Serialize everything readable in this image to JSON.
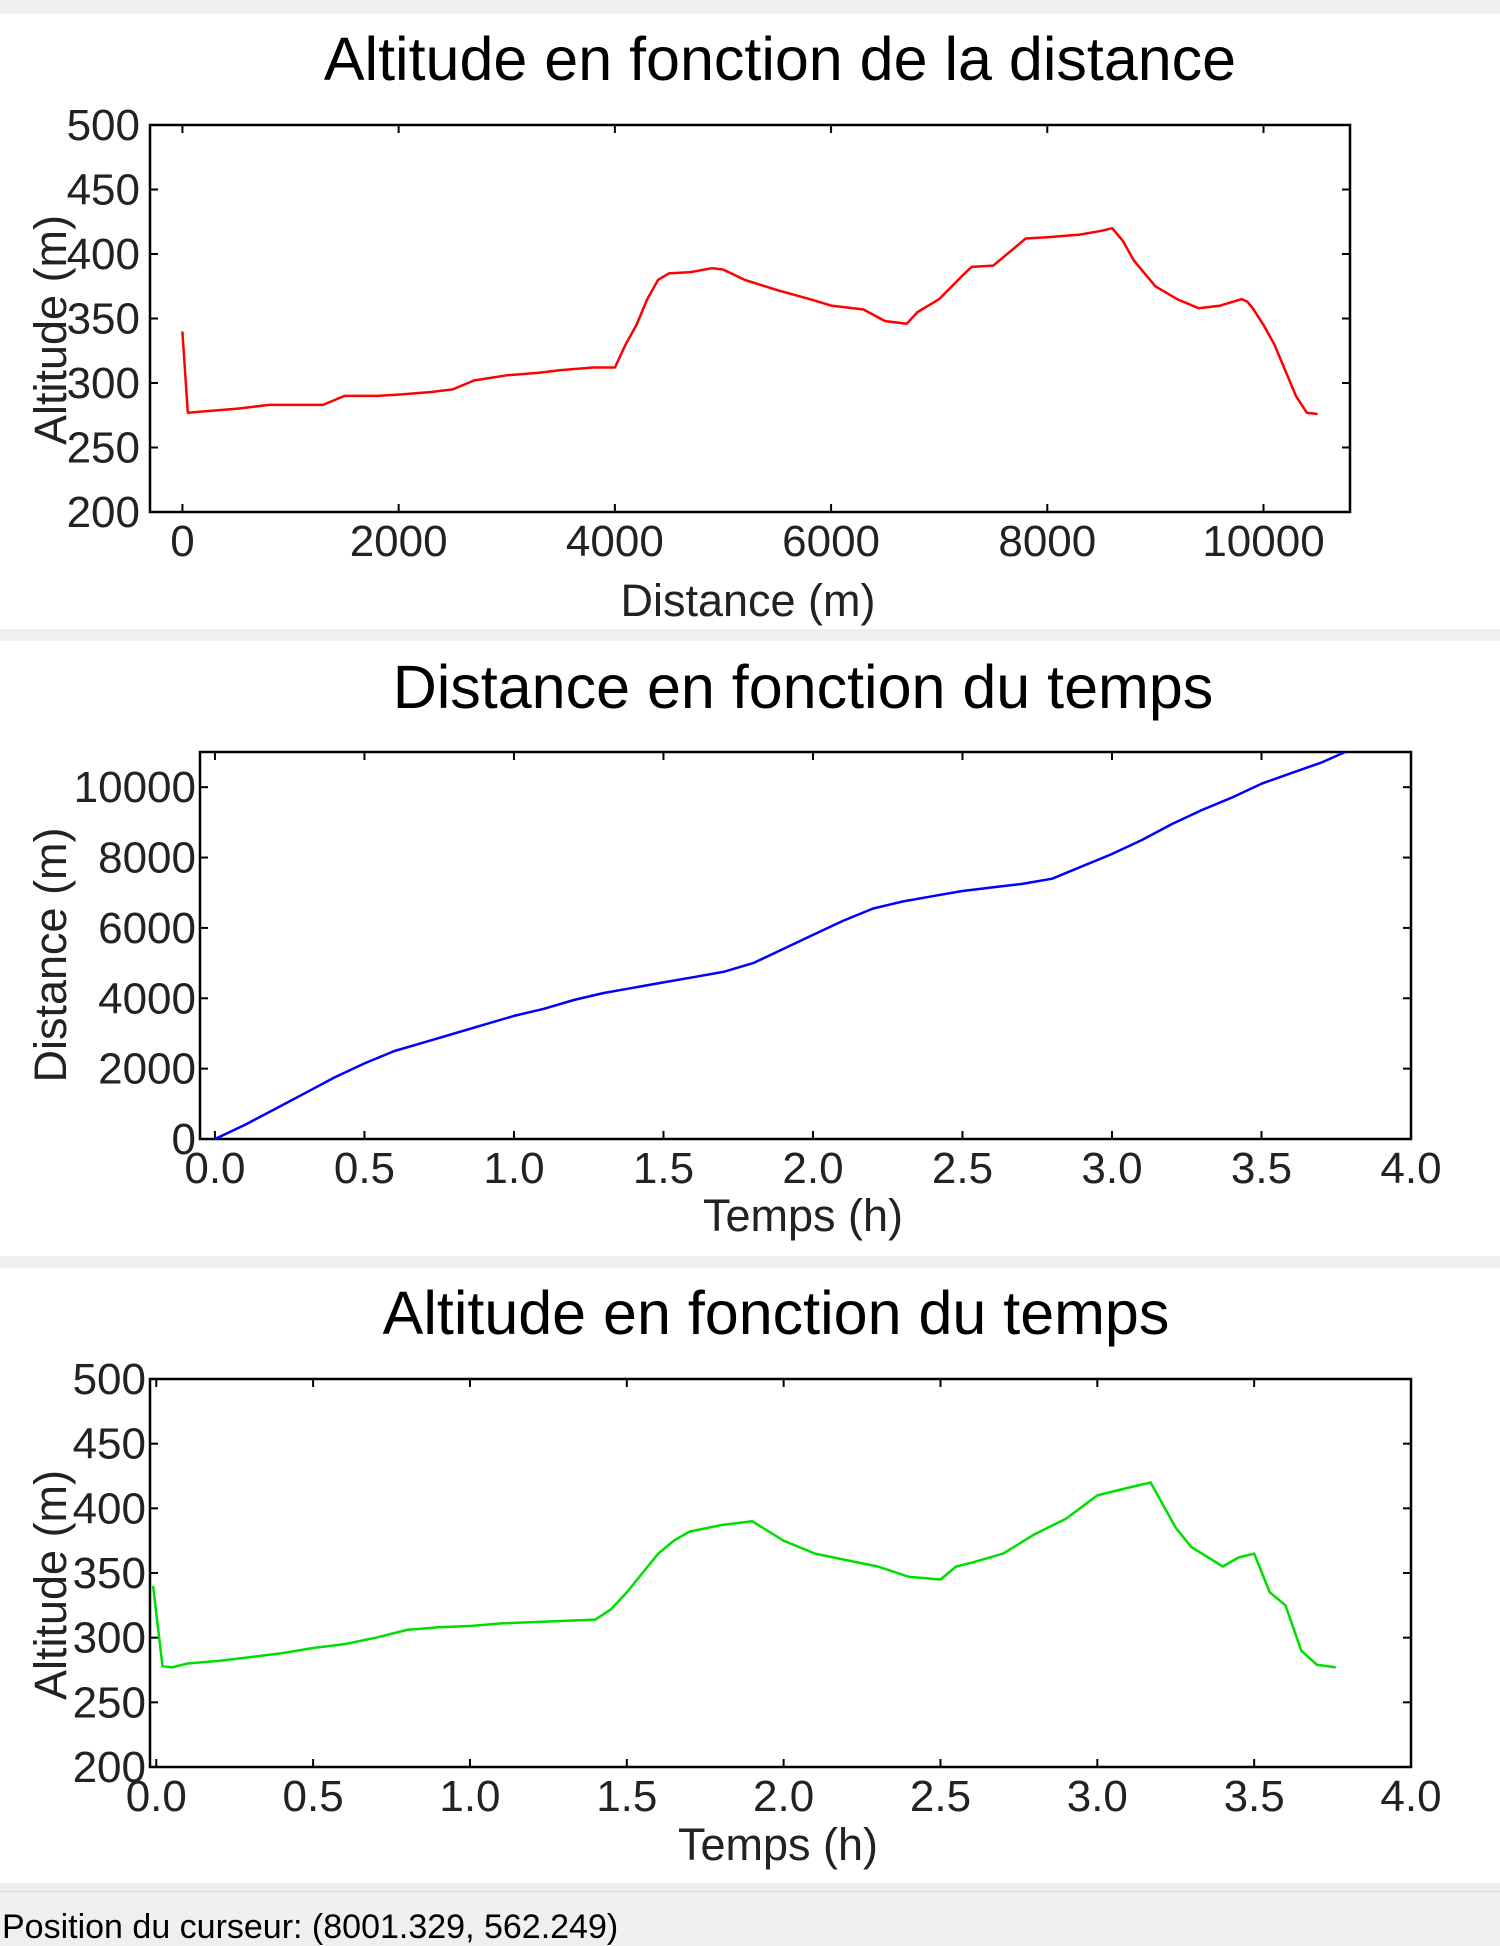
{
  "chart_data": [
    {
      "type": "line",
      "title": "Altitude en fonction de la distance",
      "xlabel": "Distance (m)",
      "ylabel": "Altitude (m)",
      "xlim": [
        -300,
        10800
      ],
      "ylim": [
        200,
        500
      ],
      "xticks": [
        "0",
        "2000",
        "4000",
        "6000",
        "8000",
        "10000"
      ],
      "yticks": [
        "200",
        "250",
        "300",
        "350",
        "400",
        "450",
        "500"
      ],
      "grid": false,
      "color": "#ff0000",
      "series": [
        {
          "x": [
            0,
            50,
            200,
            500,
            800,
            1000,
            1300,
            1500,
            1800,
            2000,
            2300,
            2500,
            2700,
            3000,
            3300,
            3500,
            3800,
            4000,
            4100,
            4200,
            4300,
            4400,
            4500,
            4700,
            4900,
            5000,
            5200,
            5500,
            5800,
            6000,
            6300,
            6500,
            6700,
            6800,
            6900,
            7000,
            7200,
            7300,
            7500,
            7700,
            7800,
            8000,
            8300,
            8500,
            8600,
            8700,
            8800,
            9000,
            9200,
            9400,
            9600,
            9800,
            9850,
            9900,
            10000,
            10100,
            10200,
            10300,
            10400,
            10500
          ],
          "y": [
            340,
            277,
            278,
            280,
            283,
            283,
            283,
            290,
            290,
            291,
            293,
            295,
            302,
            306,
            308,
            310,
            312,
            312,
            330,
            345,
            365,
            380,
            385,
            386,
            389,
            388,
            380,
            372,
            365,
            360,
            357,
            348,
            346,
            355,
            360,
            365,
            382,
            390,
            391,
            405,
            412,
            413,
            415,
            418,
            420,
            410,
            395,
            375,
            365,
            358,
            360,
            365,
            363,
            358,
            345,
            330,
            310,
            290,
            277,
            276
          ]
        }
      ]
    },
    {
      "type": "line",
      "title": "Distance en fonction du temps",
      "xlabel": "Temps (h)",
      "ylabel": "Distance (m)",
      "xlim": [
        -0.05,
        4.0
      ],
      "ylim": [
        0,
        11000
      ],
      "xticks": [
        "0.0",
        "0.5",
        "1.0",
        "1.5",
        "2.0",
        "2.5",
        "3.0",
        "3.5",
        "4.0"
      ],
      "yticks": [
        "0",
        "2000",
        "4000",
        "6000",
        "8000",
        "10000"
      ],
      "grid": false,
      "color": "#0000ff",
      "series": [
        {
          "x": [
            0,
            0.1,
            0.2,
            0.3,
            0.4,
            0.5,
            0.6,
            0.7,
            0.8,
            0.9,
            1.0,
            1.1,
            1.2,
            1.3,
            1.4,
            1.5,
            1.6,
            1.7,
            1.8,
            1.9,
            2.0,
            2.1,
            2.2,
            2.3,
            2.4,
            2.5,
            2.6,
            2.7,
            2.8,
            2.9,
            3.0,
            3.1,
            3.2,
            3.3,
            3.4,
            3.5,
            3.6,
            3.7,
            3.78
          ],
          "y": [
            0,
            400,
            850,
            1300,
            1750,
            2150,
            2500,
            2750,
            3000,
            3250,
            3500,
            3700,
            3950,
            4150,
            4300,
            4450,
            4600,
            4750,
            5000,
            5400,
            5800,
            6200,
            6550,
            6750,
            6900,
            7050,
            7150,
            7250,
            7400,
            7750,
            8100,
            8500,
            8950,
            9350,
            9700,
            10100,
            10400,
            10700,
            11000
          ]
        }
      ]
    },
    {
      "type": "line",
      "title": "Altitude en fonction du temps",
      "xlabel": "Temps (h)",
      "ylabel": "Altitude (m)",
      "xlim": [
        -0.02,
        4.0
      ],
      "ylim": [
        200,
        500
      ],
      "xticks": [
        "0.0",
        "0.5",
        "1.0",
        "1.5",
        "2.0",
        "2.5",
        "3.0",
        "3.5",
        "4.0"
      ],
      "yticks": [
        "200",
        "250",
        "300",
        "350",
        "400",
        "450",
        "500"
      ],
      "grid": false,
      "color": "#00dd00",
      "series": [
        {
          "x": [
            -0.01,
            0.02,
            0.05,
            0.1,
            0.2,
            0.3,
            0.4,
            0.5,
            0.6,
            0.7,
            0.8,
            0.9,
            1.0,
            1.1,
            1.2,
            1.3,
            1.4,
            1.45,
            1.5,
            1.55,
            1.6,
            1.65,
            1.7,
            1.8,
            1.9,
            2.0,
            2.1,
            2.2,
            2.3,
            2.4,
            2.5,
            2.55,
            2.6,
            2.7,
            2.8,
            2.9,
            3.0,
            3.1,
            3.17,
            3.25,
            3.3,
            3.4,
            3.45,
            3.5,
            3.55,
            3.6,
            3.65,
            3.7,
            3.76
          ],
          "y": [
            340,
            278,
            277,
            280,
            282,
            285,
            288,
            292,
            295,
            300,
            306,
            308,
            309,
            311,
            312,
            313,
            314,
            322,
            335,
            350,
            365,
            375,
            382,
            387,
            390,
            375,
            365,
            360,
            355,
            347,
            345,
            355,
            358,
            365,
            380,
            392,
            410,
            416,
            420,
            385,
            370,
            355,
            362,
            365,
            335,
            325,
            290,
            279,
            277
          ]
        }
      ]
    }
  ],
  "statusbar": {
    "text": "Position du curseur: (8001.329, 562.249)"
  }
}
